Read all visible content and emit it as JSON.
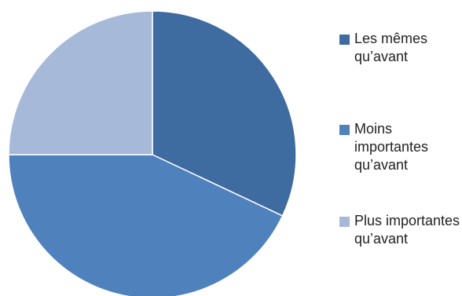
{
  "chart_data": {
    "type": "pie",
    "title": "",
    "categories": [
      "Les mêmes qu’avant",
      "Moins importantes qu’avant",
      "Plus importantes qu’avant"
    ],
    "values": [
      32,
      43,
      25
    ],
    "colors": [
      "#3E6BA0",
      "#4F81BD",
      "#A6B9D8"
    ],
    "start_angle_deg": 0,
    "direction": "clockwise",
    "legend_placement": "right"
  }
}
